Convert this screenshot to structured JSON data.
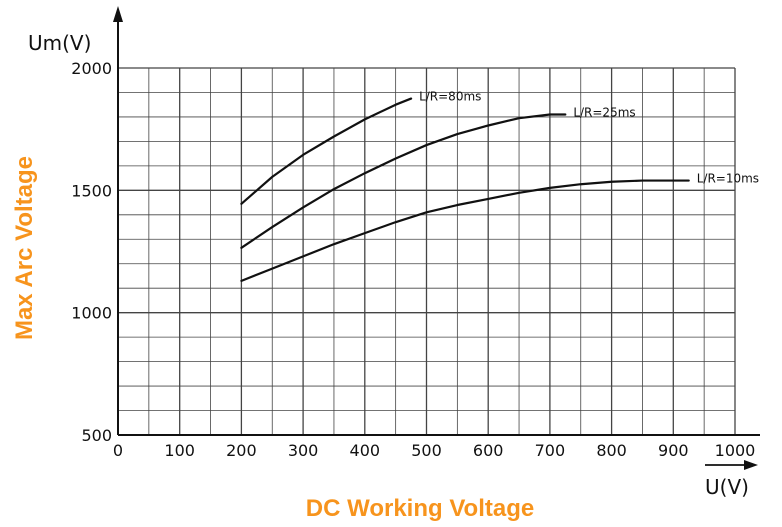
{
  "chart_data": {
    "type": "line",
    "title": "",
    "xlabel": "DC Working Voltage",
    "ylabel": "Max Arc Voltage",
    "x_unit": "U(V)",
    "y_unit": "Um(V)",
    "xlim": [
      0,
      1000
    ],
    "ylim": [
      500,
      2000
    ],
    "x_ticks": [
      "0",
      "100",
      "200",
      "300",
      "400",
      "500",
      "600",
      "700",
      "800",
      "900",
      "1000"
    ],
    "y_ticks": [
      "500",
      "1000",
      "1500",
      "2000"
    ],
    "grid": true,
    "series": [
      {
        "name": "L/R=80ms",
        "x": [
          200,
          250,
          300,
          350,
          400,
          450,
          475
        ],
        "y": [
          1445,
          1555,
          1645,
          1720,
          1790,
          1850,
          1875
        ]
      },
      {
        "name": "L/R=25ms",
        "x": [
          200,
          250,
          300,
          350,
          400,
          450,
          500,
          550,
          600,
          650,
          700,
          725
        ],
        "y": [
          1265,
          1350,
          1430,
          1505,
          1570,
          1630,
          1685,
          1730,
          1765,
          1795,
          1810,
          1810
        ]
      },
      {
        "name": "L/R=10ms",
        "x": [
          200,
          250,
          300,
          350,
          400,
          450,
          500,
          550,
          600,
          650,
          700,
          750,
          800,
          850,
          900,
          925
        ],
        "y": [
          1130,
          1180,
          1230,
          1280,
          1325,
          1370,
          1410,
          1440,
          1465,
          1490,
          1510,
          1525,
          1535,
          1540,
          1540,
          1540
        ]
      }
    ],
    "colors": {
      "axis_title": "#F7941D",
      "lines": "#111111",
      "grid": "#444444"
    }
  }
}
